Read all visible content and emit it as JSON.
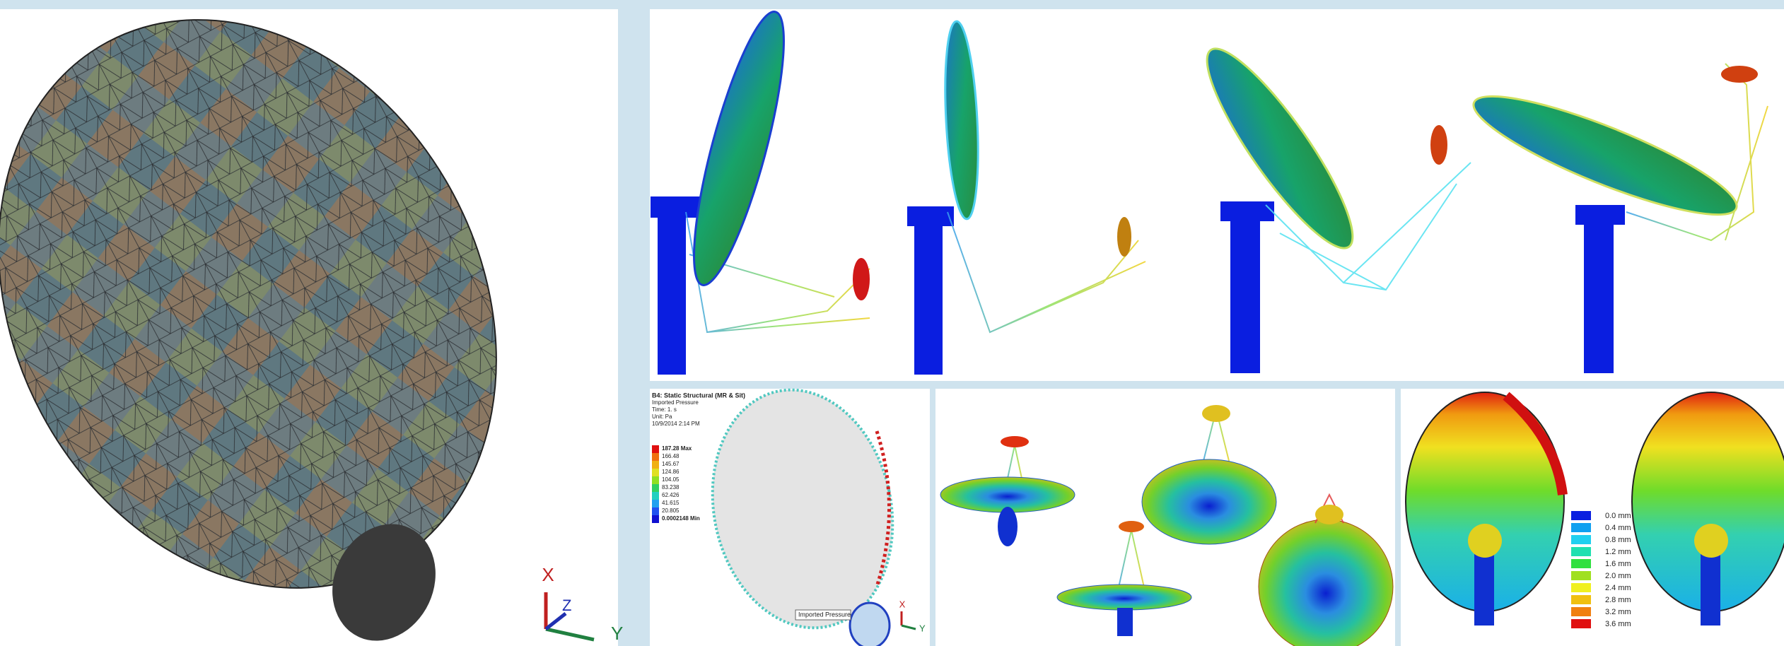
{
  "left_panel": {
    "triad": {
      "x": "X",
      "y": "Y",
      "z": "Z"
    }
  },
  "pressure_panel": {
    "header": [
      "B4: Static Structural (MR & Sit)",
      "Imported Pressure",
      "Time: 1. s",
      "Unit: Pa",
      "10/9/2014 2:14 PM"
    ],
    "legend": [
      "187.28 Max",
      "166.48",
      "145.67",
      "124.86",
      "104.05",
      "83.238",
      "62.426",
      "41.615",
      "20.805",
      "0.0002148 Min"
    ],
    "tag": "Imported Pressure",
    "triad": {
      "x": "X",
      "y": "Y"
    }
  },
  "deformation_panel": {
    "legend": [
      "0.0 mm",
      "0.4 mm",
      "0.8 mm",
      "1.2 mm",
      "1.6 mm",
      "2.0 mm",
      "2.4 mm",
      "2.8 mm",
      "3.2 mm",
      "3.6 mm"
    ]
  }
}
